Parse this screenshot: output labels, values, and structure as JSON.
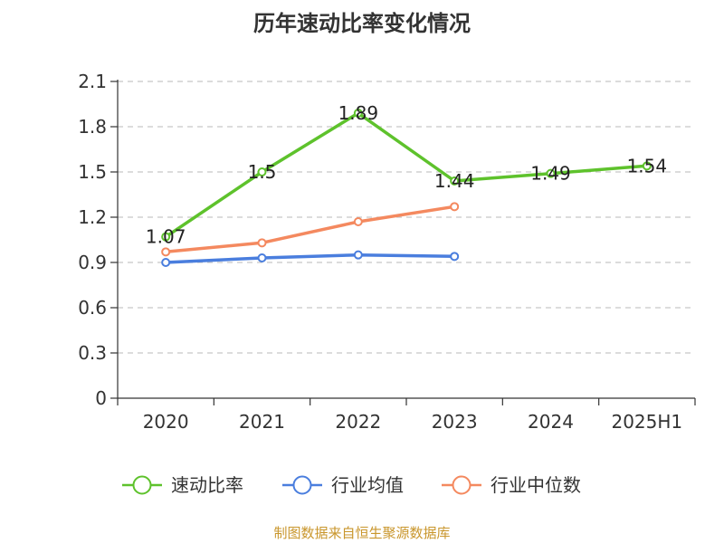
{
  "chart_data": {
    "type": "line",
    "title": "历年速动比率变化情况",
    "categories": [
      "2020",
      "2021",
      "2022",
      "2023",
      "2024",
      "2025H1"
    ],
    "ylim": [
      0,
      2.1
    ],
    "yticks": [
      "0",
      "0.3",
      "0.6",
      "0.9",
      "1.2",
      "1.5",
      "1.8",
      "2.1"
    ],
    "grid": true,
    "legend_position": "bottom",
    "series": [
      {
        "name": "速动比率",
        "color": "#5ec22c",
        "values": [
          1.07,
          1.5,
          1.89,
          1.44,
          1.49,
          1.54
        ],
        "labels": [
          "1.07",
          "1.5",
          "1.89",
          "1.44",
          "1.49",
          "1.54"
        ]
      },
      {
        "name": "行业均值",
        "color": "#4a7ede",
        "values": [
          0.9,
          0.93,
          0.95,
          0.94,
          null,
          null
        ]
      },
      {
        "name": "行业中位数",
        "color": "#f4895f",
        "values": [
          0.97,
          1.03,
          1.17,
          1.27,
          null,
          null
        ]
      }
    ]
  },
  "source": "制图数据来自恒生聚源数据库"
}
